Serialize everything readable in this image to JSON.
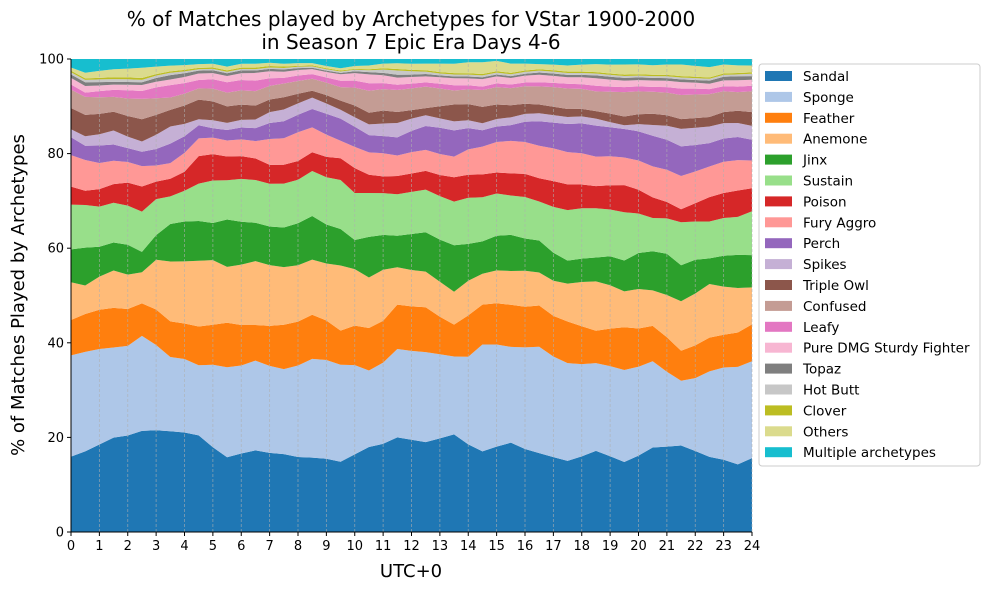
{
  "chart_data": {
    "type": "area",
    "title_line1": "% of Matches played by Archetypes for VStar 1900-2000",
    "title_line2": "in Season 7 Epic Era Days 4-6",
    "xlabel": "UTC+0",
    "ylabel": "% of Matches Played by Archetypes",
    "xlim": [
      0,
      24
    ],
    "ylim": [
      0,
      100
    ],
    "xticks": [
      "0",
      "1",
      "2",
      "3",
      "4",
      "5",
      "6",
      "7",
      "8",
      "9",
      "10",
      "11",
      "12",
      "13",
      "14",
      "15",
      "16",
      "17",
      "18",
      "19",
      "20",
      "21",
      "22",
      "23",
      "24"
    ],
    "yticks": [
      "0",
      "20",
      "40",
      "60",
      "80",
      "100"
    ],
    "grid": "vertical dashed",
    "legend_position": "outside-right",
    "x": [
      0,
      0.5,
      1,
      1.5,
      2,
      2.5,
      3,
      3.5,
      4,
      4.5,
      5,
      5.5,
      6,
      6.5,
      7,
      7.5,
      8,
      8.5,
      9,
      9.5,
      10,
      10.5,
      11,
      11.5,
      12,
      12.5,
      13,
      13.5,
      14,
      14.5,
      15,
      15.5,
      16,
      16.5,
      17,
      17.5,
      18,
      18.5,
      19,
      19.5,
      20,
      20.5,
      21,
      21.5,
      22,
      22.5,
      23,
      23.5,
      24
    ],
    "series": [
      {
        "name": "Sandal",
        "color": "#1f77b4",
        "values": [
          16,
          17,
          18.5,
          20.2,
          21,
          21.8,
          21.5,
          21.2,
          21,
          20.7,
          18,
          15.8,
          16.5,
          17,
          16.8,
          16.5,
          16.4,
          16.2,
          15.8,
          15.2,
          16.5,
          18.2,
          19,
          19.8,
          19.5,
          19.2,
          20,
          20.8,
          19,
          17.2,
          18.2,
          19.3,
          18,
          17,
          16,
          15.2,
          16.2,
          17.3,
          16.2,
          15.2,
          17,
          18.8,
          18.8,
          18.7,
          17.8,
          16.7,
          15.9,
          14.9,
          16
        ]
      },
      {
        "name": "Sponge",
        "color": "#aec7e8",
        "values": [
          21.5,
          21,
          20.2,
          19.3,
          19.5,
          20.5,
          18,
          15.6,
          15.5,
          15,
          17.5,
          19,
          18.5,
          18.7,
          18.5,
          18,
          20,
          21.5,
          21.3,
          21,
          19,
          16.4,
          17.5,
          18.5,
          18.8,
          19.2,
          18,
          16.6,
          19,
          22.8,
          21.8,
          20.7,
          22,
          22.9,
          21.5,
          20.9,
          19.8,
          18.7,
          19.3,
          20,
          19.8,
          19.2,
          16.5,
          14,
          16,
          19,
          20.3,
          21.5,
          21
        ]
      },
      {
        "name": "Feather",
        "color": "#ff7f0e",
        "values": [
          7.5,
          8,
          8.3,
          8.5,
          8,
          7,
          7.5,
          7.5,
          7.5,
          8.3,
          8.5,
          9.4,
          8.5,
          7.4,
          8.5,
          9.4,
          9.6,
          9.6,
          8.5,
          7.4,
          8.4,
          9.1,
          9,
          9.3,
          9.4,
          9.6,
          8,
          6.8,
          9,
          8.5,
          8.8,
          9.1,
          8.8,
          8.9,
          8.7,
          8.9,
          8.1,
          6.9,
          8,
          9.3,
          8.5,
          7.9,
          7.6,
          6.5,
          7.2,
          7.5,
          7.2,
          7.6,
          8
        ]
      },
      {
        "name": "Anemone",
        "color": "#ffbb78",
        "values": [
          8,
          6,
          7,
          8,
          7.5,
          6.7,
          10.5,
          12.6,
          13.1,
          14.1,
          13.7,
          11.8,
          12.7,
          13.3,
          12.9,
          12.2,
          12.3,
          12,
          12.3,
          14.1,
          12,
          10.8,
          11,
          7.8,
          7.7,
          7.6,
          7.5,
          7,
          7.5,
          6.6,
          7,
          7.3,
          7.8,
          7.1,
          7.5,
          8.1,
          9.5,
          10.5,
          9.3,
          7.8,
          8.8,
          7.9,
          9.3,
          10.7,
          11.4,
          11.9,
          10.6,
          9.8,
          8
        ]
      },
      {
        "name": "Jinx",
        "color": "#2ca02c",
        "values": [
          7,
          8,
          6.3,
          6,
          6.5,
          4.4,
          5.2,
          7.9,
          8.4,
          8.5,
          7.9,
          10,
          9,
          8,
          8.2,
          8.4,
          9.2,
          9.5,
          8.4,
          7.9,
          6.2,
          8.7,
          7.5,
          6.6,
          7.6,
          8.4,
          9,
          9.9,
          8,
          6.9,
          7.4,
          7.8,
          7,
          6.9,
          6,
          4.9,
          5,
          5.1,
          6.2,
          6.7,
          8,
          8.7,
          9.1,
          7.8,
          7.4,
          5.7,
          6.8,
          7.3,
          7
        ]
      },
      {
        "name": "Sustain",
        "color": "#98df8a",
        "values": [
          9.5,
          9,
          8.5,
          8.5,
          8.5,
          8.7,
          7.6,
          5.8,
          6.5,
          8,
          9,
          8.3,
          9,
          8.9,
          9.1,
          9.3,
          9.5,
          9.8,
          10.2,
          10.6,
          10,
          9.4,
          9,
          8.7,
          8.9,
          9.1,
          9.3,
          9.3,
          10,
          9.4,
          9,
          8.5,
          9,
          8.4,
          9.8,
          10.8,
          10.8,
          10.5,
          10,
          10.5,
          8.8,
          7.4,
          7.8,
          9.3,
          8.4,
          8.2,
          8.3,
          8.4,
          9.5
        ]
      },
      {
        "name": "Poison",
        "color": "#d62728",
        "values": [
          3.8,
          3,
          3.7,
          4,
          5,
          5.4,
          3.7,
          3.7,
          4,
          5.9,
          5.6,
          5,
          4.8,
          4.5,
          4,
          4,
          4.1,
          4.1,
          4.4,
          4.7,
          5.3,
          3.9,
          3.6,
          3.8,
          3.9,
          4,
          4.5,
          5.2,
          5,
          4.9,
          4.5,
          4.8,
          5,
          5,
          5.5,
          5.5,
          5.1,
          4.7,
          5.2,
          5.9,
          5.3,
          4.6,
          3.6,
          2.8,
          4,
          5.4,
          5.5,
          5.8,
          5
        ]
      },
      {
        "name": "Fury Aggro",
        "color": "#ff9896",
        "values": [
          6.7,
          6.5,
          5.5,
          5,
          4.5,
          4.4,
          3.4,
          3.3,
          4,
          3.8,
          3.5,
          3.4,
          3.5,
          3.6,
          5.5,
          5.6,
          6.3,
          5.4,
          4.8,
          3.8,
          4.5,
          4.8,
          5,
          4.3,
          4.5,
          4.5,
          4.5,
          4.4,
          5.5,
          5.9,
          6.5,
          7,
          6.9,
          7,
          7,
          6.9,
          6.7,
          6.3,
          6.2,
          6,
          6.5,
          6.9,
          7.1,
          7.2,
          7,
          6.8,
          6.9,
          6.7,
          6
        ]
      },
      {
        "name": "Perch",
        "color": "#9467bd",
        "values": [
          3.8,
          3,
          3.7,
          3.5,
          3,
          3.1,
          3.5,
          4.1,
          3.5,
          2.8,
          2,
          2.2,
          2.5,
          2.7,
          3.4,
          3.6,
          3.8,
          4,
          4.5,
          4.8,
          4.3,
          3.7,
          3.7,
          3.8,
          4.5,
          5.1,
          5.6,
          5.6,
          4.6,
          3.5,
          3.3,
          3.4,
          4.4,
          5.3,
          5.5,
          6,
          6.4,
          6.6,
          6.2,
          6.2,
          6.5,
          6.8,
          6.6,
          6.4,
          5.8,
          5.2,
          5.1,
          5.1,
          4.5
        ]
      },
      {
        "name": "Spikes",
        "color": "#c5b0d5",
        "values": [
          1.7,
          2,
          2.4,
          3,
          2.5,
          2.2,
          3,
          3.6,
          2.6,
          1.3,
          1.7,
          1.5,
          1.6,
          1.8,
          2.3,
          2.5,
          2.5,
          2.5,
          2.2,
          1.9,
          2,
          2.3,
          2.7,
          3,
          2.6,
          2.3,
          2,
          1.9,
          1.7,
          1.5,
          1.6,
          1.7,
          1.7,
          1.7,
          1.6,
          1.5,
          1.5,
          1.5,
          1.1,
          0.8,
          1.6,
          2.4,
          3.1,
          3.8,
          3.8,
          3.7,
          3.4,
          3.1,
          3
        ]
      },
      {
        "name": "Triple Owl",
        "color": "#8c564b",
        "values": [
          4.5,
          4.5,
          4.3,
          4,
          4.5,
          4.8,
          4.2,
          3.5,
          3.9,
          4.2,
          4,
          3.5,
          3.2,
          2.9,
          2.7,
          2.6,
          2.1,
          1.5,
          1.8,
          2,
          2.5,
          2.5,
          2.8,
          2.3,
          1.8,
          1.5,
          2.6,
          3.6,
          3.5,
          3.5,
          3.1,
          2.6,
          2.2,
          1.9,
          1.8,
          1.7,
          1.6,
          1.6,
          1.8,
          1.9,
          2.2,
          2.5,
          2.3,
          2.1,
          2.1,
          2.1,
          2.4,
          2.7,
          3
        ]
      },
      {
        "name": "Confused",
        "color": "#c49c94",
        "values": [
          3.9,
          3.8,
          3.5,
          3.2,
          3.8,
          4.4,
          3.5,
          2.6,
          2.5,
          2.4,
          2.7,
          2.9,
          3,
          3,
          2.9,
          2.9,
          2.8,
          2.6,
          2.7,
          2.9,
          3.8,
          4.7,
          4.6,
          4.6,
          4.6,
          4.6,
          3.8,
          3,
          3.2,
          3.6,
          3.7,
          3.7,
          3.8,
          3.9,
          4.2,
          4.4,
          4.3,
          4.2,
          4.7,
          5.3,
          5.1,
          4.9,
          5,
          5.2,
          5.2,
          5.1,
          4.6,
          4.1,
          4.5
        ]
      },
      {
        "name": "Leafy",
        "color": "#e377c2",
        "values": [
          1.1,
          0.9,
          1.3,
          1.5,
          1.8,
          1.7,
          2.3,
          2.6,
          2.2,
          1.8,
          2,
          2.2,
          2.2,
          2.2,
          1.6,
          1.2,
          1.2,
          1,
          1.1,
          1.4,
          1.5,
          1.6,
          1.3,
          1.1,
          1,
          0.9,
          1,
          1.1,
          0.9,
          0.7,
          0.8,
          0.8,
          0.8,
          0.9,
          0.9,
          1,
          1,
          1.2,
          1.1,
          1.1,
          1.1,
          1.1,
          1.2,
          1.4,
          1.3,
          1.1,
          1.1,
          1.2,
          1.2
        ]
      },
      {
        "name": "Pure DMG Sturdy Fighter",
        "color": "#f7b6d2",
        "values": [
          1.4,
          1.4,
          1.2,
          1.1,
          1.2,
          1.3,
          1.2,
          1.2,
          1.3,
          1.4,
          1.3,
          1.3,
          1.4,
          1.6,
          1.5,
          1.3,
          1.2,
          1.1,
          1.2,
          1.4,
          1.6,
          1.9,
          1.7,
          1.5,
          1.4,
          1.3,
          1.4,
          1.5,
          1.5,
          1.6,
          1.5,
          1.4,
          1.5,
          1.6,
          1.5,
          1.4,
          1.5,
          1.6,
          1.5,
          1.4,
          1.4,
          1.4,
          1.4,
          1.4,
          1.3,
          1.2,
          1.3,
          1.4,
          1.3
        ]
      },
      {
        "name": "Topaz",
        "color": "#7f7f7f",
        "values": [
          0.7,
          0.8,
          0.7,
          0.6,
          0.6,
          0.6,
          0.8,
          0.9,
          0.8,
          0.6,
          0.6,
          0.6,
          0.6,
          0.5,
          0.5,
          0.5,
          0.4,
          0.3,
          0.3,
          0.3,
          0.4,
          0.5,
          0.5,
          0.6,
          0.5,
          0.5,
          0.4,
          0.4,
          0.4,
          0.4,
          0.4,
          0.4,
          0.4,
          0.5,
          0.5,
          0.5,
          0.5,
          0.6,
          0.6,
          0.6,
          0.6,
          0.6,
          0.6,
          0.6,
          0.6,
          0.7,
          0.8,
          0.9,
          0.8
        ]
      },
      {
        "name": "Hot Butt",
        "color": "#c7c7c7",
        "values": [
          0.5,
          0.5,
          0.6,
          0.6,
          0.6,
          0.5,
          0.5,
          0.5,
          0.4,
          0.3,
          0.3,
          0.3,
          0.3,
          0.3,
          0.3,
          0.3,
          0.3,
          0.3,
          0.3,
          0.3,
          0.3,
          0.4,
          0.7,
          0.9,
          0.7,
          0.5,
          0.4,
          0.4,
          0.4,
          0.4,
          0.4,
          0.4,
          0.4,
          0.4,
          0.4,
          0.4,
          0.4,
          0.4,
          0.4,
          0.4,
          0.4,
          0.4,
          0.4,
          0.4,
          0.4,
          0.4,
          0.4,
          0.4,
          0.5
        ]
      },
      {
        "name": "Clover",
        "color": "#bcbd22",
        "values": [
          0.3,
          0.3,
          0.3,
          0.4,
          0.4,
          0.4,
          0.3,
          0.3,
          0.3,
          0.3,
          0.3,
          0.3,
          0.3,
          0.3,
          0.3,
          0.3,
          0.2,
          0.2,
          0.2,
          0.2,
          0.2,
          0.2,
          0.3,
          0.3,
          0.3,
          0.3,
          0.3,
          0.3,
          0.3,
          0.3,
          0.3,
          0.3,
          0.3,
          0.3,
          0.3,
          0.3,
          0.3,
          0.3,
          0.3,
          0.3,
          0.3,
          0.3,
          0.3,
          0.3,
          0.3,
          0.3,
          0.3,
          0.3,
          0.3
        ]
      },
      {
        "name": "Others",
        "color": "#dbdb8d",
        "values": [
          0.7,
          1.2,
          1.5,
          1.7,
          1.9,
          2.2,
          1.6,
          1.2,
          1,
          0.8,
          0.8,
          0.8,
          0.8,
          0.8,
          0.7,
          0.6,
          0.6,
          0.5,
          0.5,
          0.5,
          0.6,
          0.8,
          1,
          1.2,
          1.3,
          1.4,
          1.8,
          2,
          2.4,
          2.5,
          2.2,
          2,
          1.5,
          1.1,
          1.2,
          1.3,
          1.5,
          1.7,
          1.9,
          2.2,
          2.2,
          2.1,
          2.3,
          2.5,
          2.4,
          2.3,
          2,
          1.7,
          1.5
        ]
      },
      {
        "name": "Multiple archetypes",
        "color": "#17becf",
        "values": [
          1.8,
          2.9,
          2.5,
          2.2,
          2.1,
          1.9,
          1.6,
          1.4,
          1.3,
          1.1,
          1,
          1.6,
          1,
          1,
          0.8,
          1,
          0.9,
          0.9,
          1.5,
          2,
          1.5,
          1.4,
          1,
          0.9,
          1,
          1,
          1,
          1,
          0.7,
          0.7,
          0.4,
          1,
          1,
          1.1,
          1.2,
          1.4,
          1.2,
          1.1,
          1.2,
          1.2,
          1.2,
          1.4,
          1.2,
          1.2,
          1.5,
          1.8,
          1.2,
          1.4,
          1.4
        ]
      }
    ]
  }
}
